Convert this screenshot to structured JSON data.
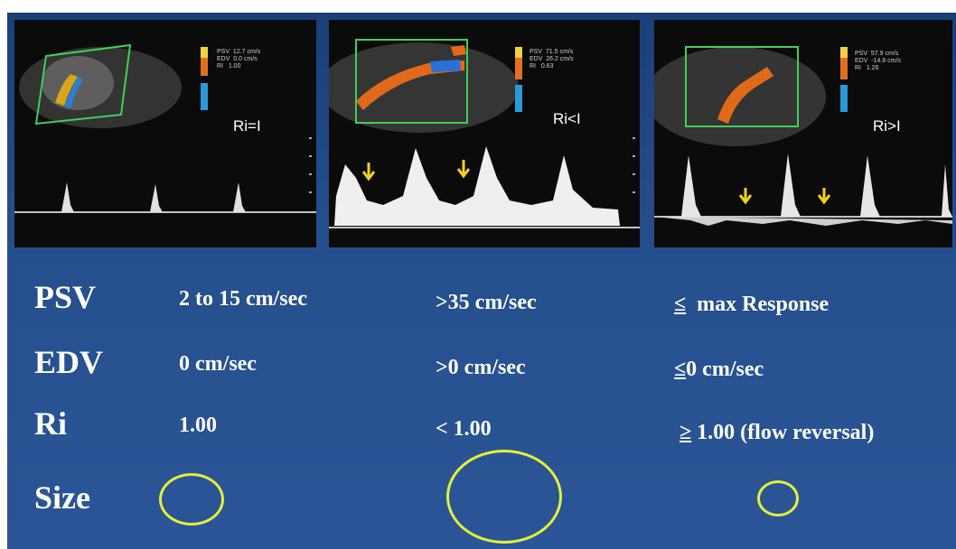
{
  "panels": [
    {
      "ri_label": "Ri=I",
      "readout": "PSV  12.7 cm/s\nEDV  0.0 cm/s\nRI   1.00"
    },
    {
      "ri_label": "Ri<I",
      "readout": "PSV  71.5 cm/s\nEDV  26.2 cm/s\nRI   0.63"
    },
    {
      "ri_label": "Ri>I",
      "readout": "PSV  57.9 cm/s\nEDV  -14.8 cm/s\nRI   1.26"
    }
  ],
  "rows": {
    "psv": {
      "label": "PSV",
      "values": [
        "2 to 15 cm/sec",
        ">35 cm/sec",
        "max Response"
      ],
      "prefix3": "≤"
    },
    "edv": {
      "label": "EDV",
      "values": [
        "0 cm/sec",
        ">0 cm/sec",
        "0 cm/sec"
      ],
      "prefix3": "≤"
    },
    "ri": {
      "label": "Ri",
      "values": [
        "1.00",
        "< 1.00",
        "1.00 (flow reversal)"
      ],
      "prefix3": "≥"
    },
    "size": {
      "label": "Size"
    }
  },
  "colors": {
    "background": "#254f8c",
    "circle": "#e2f03a",
    "arrow": "#f3d21a",
    "roi_box": "#3fcf5a"
  }
}
